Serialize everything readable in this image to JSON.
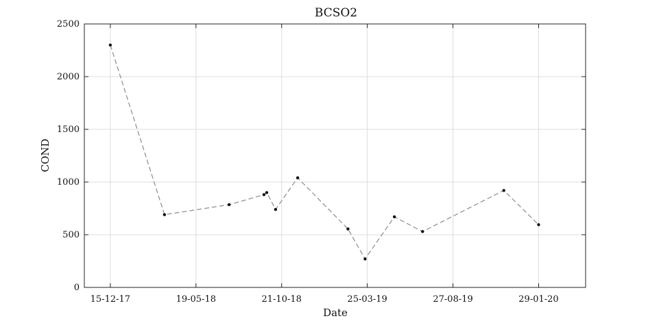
{
  "chart_data": {
    "type": "line",
    "title": "BCSO2",
    "xlabel": "Date",
    "ylabel": "COND",
    "x_axis_type": "date",
    "x_tick_labels": [
      "15-12-17",
      "19-05-18",
      "21-10-18",
      "25-03-19",
      "27-08-19",
      "29-01-20"
    ],
    "x_ticks": [
      "2017-12-15",
      "2018-05-19",
      "2018-10-21",
      "2019-03-25",
      "2019-08-27",
      "2020-01-29"
    ],
    "xlim": [
      "2017-10-29",
      "2020-04-23"
    ],
    "ylim": [
      0,
      2500
    ],
    "y_ticks": [
      0,
      500,
      1000,
      1500,
      2000,
      2500
    ],
    "grid": true,
    "line_style": "dashed",
    "line_color": "#8a8a8a",
    "marker_color": "#111111",
    "series": [
      {
        "x": [
          "2017-12-15",
          "2018-03-23",
          "2018-07-18",
          "2018-09-19",
          "2018-09-24",
          "2018-10-10",
          "2018-11-19",
          "2019-02-18",
          "2019-03-21",
          "2019-05-13",
          "2019-07-03",
          "2019-11-27",
          "2020-01-29"
        ],
        "values": [
          2300,
          690,
          785,
          880,
          900,
          740,
          1040,
          555,
          270,
          670,
          530,
          920,
          595
        ]
      }
    ]
  }
}
